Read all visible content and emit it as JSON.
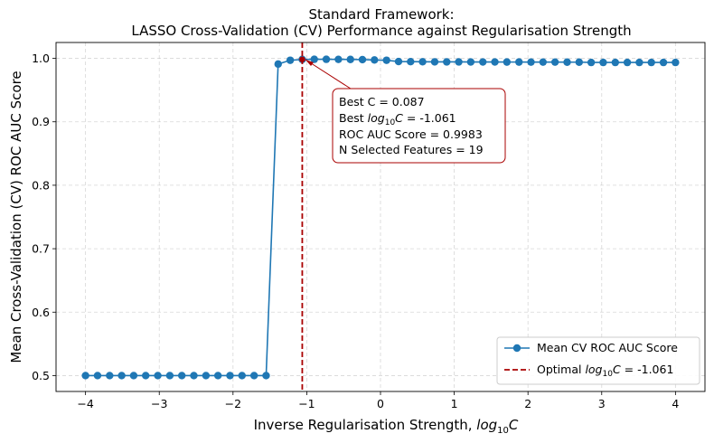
{
  "chart_data": {
    "type": "line",
    "title_line1": "Standard Framework:",
    "title_line2": "LASSO Cross-Validation (CV) Performance against Regularisation Strength",
    "xlabel_text": "Inverse Regularisation Strength, ",
    "xlabel_math_base": "log",
    "xlabel_math_sub": "10",
    "xlabel_math_var": "C",
    "ylabel": "Mean Cross-Validation (CV) ROC AUC Score",
    "xlim": [
      -4.4,
      4.4
    ],
    "ylim": [
      0.475,
      1.025
    ],
    "xticks": [
      -4,
      -3,
      -2,
      -1,
      0,
      1,
      2,
      3,
      4
    ],
    "xtick_labels": [
      "−4",
      "−3",
      "−2",
      "−1",
      "0",
      "1",
      "2",
      "3",
      "4"
    ],
    "yticks": [
      0.5,
      0.6,
      0.7,
      0.8,
      0.9,
      1.0
    ],
    "ytick_labels": [
      "0.5",
      "0.6",
      "0.7",
      "0.8",
      "0.9",
      "1.0"
    ],
    "grid": true,
    "legend_position": "lower-right",
    "series": [
      {
        "name": "Mean CV ROC AUC Score",
        "color": "#1f77b4",
        "x": [
          -4.0,
          -3.837,
          -3.673,
          -3.51,
          -3.347,
          -3.184,
          -3.02,
          -2.857,
          -2.694,
          -2.531,
          -2.367,
          -2.204,
          -2.041,
          -1.878,
          -1.714,
          -1.551,
          -1.388,
          -1.224,
          -1.061,
          -0.898,
          -0.735,
          -0.571,
          -0.408,
          -0.245,
          -0.082,
          0.082,
          0.245,
          0.408,
          0.571,
          0.735,
          0.898,
          1.061,
          1.224,
          1.388,
          1.551,
          1.714,
          1.878,
          2.041,
          2.204,
          2.367,
          2.531,
          2.694,
          2.857,
          3.02,
          3.184,
          3.347,
          3.51,
          3.673,
          3.837,
          4.0
        ],
        "y": [
          0.5,
          0.5,
          0.5,
          0.5,
          0.5,
          0.5,
          0.5,
          0.5,
          0.5,
          0.5,
          0.5,
          0.5,
          0.5,
          0.5,
          0.5,
          0.5,
          0.991,
          0.997,
          0.9983,
          0.9985,
          0.9985,
          0.9984,
          0.9983,
          0.998,
          0.9975,
          0.997,
          0.995,
          0.9948,
          0.9946,
          0.9945,
          0.9944,
          0.9944,
          0.9943,
          0.9943,
          0.9943,
          0.9942,
          0.9942,
          0.9941,
          0.9941,
          0.9941,
          0.994,
          0.994,
          0.9935,
          0.9935,
          0.9935,
          0.9935,
          0.9935,
          0.9935,
          0.9935,
          0.9935
        ]
      }
    ],
    "optimal_line": {
      "x": -1.061,
      "color": "#aa0000",
      "legend_prefix": "Optimal ",
      "legend_math_base": "log",
      "legend_math_sub": "10",
      "legend_math_var": "C",
      "legend_suffix": " = -1.061"
    },
    "best_point": {
      "x": -1.061,
      "y": 0.9983,
      "color": "#aa0000"
    },
    "annotation": {
      "line1": "Best C = 0.087",
      "line2_prefix": "Best ",
      "line2_math_base": "log",
      "line2_math_sub": "10",
      "line2_math_var": "C",
      "line2_suffix": " = -1.061",
      "line3": "ROC AUC Score = 0.9983",
      "line4": "N Selected Features = 19",
      "border_color": "#aa0000"
    }
  }
}
